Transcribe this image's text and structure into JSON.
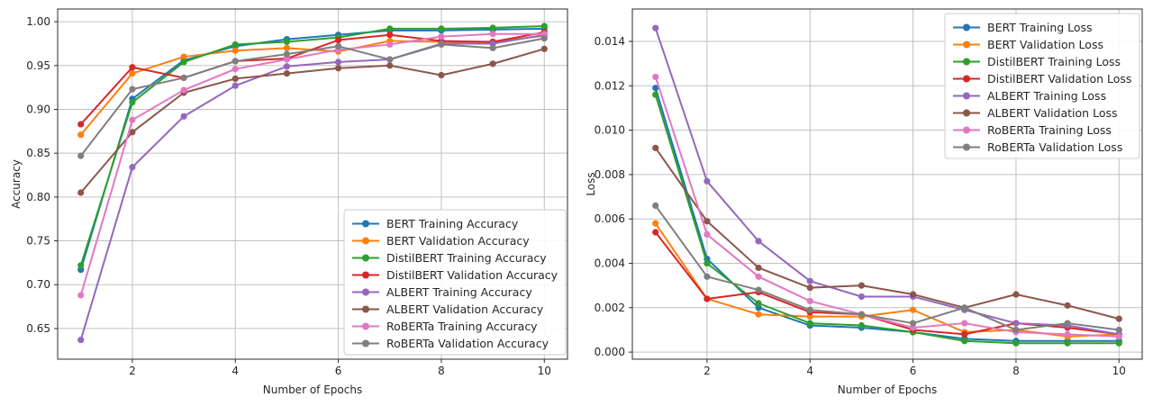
{
  "figure": {
    "background": "#ffffff",
    "grid_color": "#c0c0c0",
    "spine_color": "#2b2b2b",
    "legend_border_color": "#cccccc",
    "legend_bg": "#ffffff"
  },
  "chart_data": [
    {
      "type": "line",
      "title": "",
      "xlabel": "Number of Epochs",
      "ylabel": "Accuracy",
      "grid": true,
      "legend_position": "lower right",
      "xlim": [
        0.55,
        10.45
      ],
      "ylim": [
        0.615,
        1.0145
      ],
      "xticks": [
        "2",
        "4",
        "6",
        "8",
        "10"
      ],
      "yticks": [
        "0.65",
        "0.70",
        "0.75",
        "0.80",
        "0.85",
        "0.90",
        "0.95",
        "1.00"
      ],
      "x": [
        1,
        2,
        3,
        4,
        5,
        6,
        7,
        8,
        9,
        10
      ],
      "series": [
        {
          "name": "BERT Training Accuracy",
          "color": "#1f77b4",
          "values": [
            0.717,
            0.912,
            0.956,
            0.972,
            0.98,
            0.985,
            0.99,
            0.99,
            0.991,
            0.992
          ]
        },
        {
          "name": "BERT Validation Accuracy",
          "color": "#ff7f0e",
          "values": [
            0.871,
            0.941,
            0.96,
            0.967,
            0.97,
            0.966,
            0.978,
            0.977,
            0.977,
            0.984
          ]
        },
        {
          "name": "DistilBERT Training Accuracy",
          "color": "#2ca02c",
          "values": [
            0.722,
            0.908,
            0.954,
            0.974,
            0.977,
            0.982,
            0.992,
            0.992,
            0.993,
            0.995
          ]
        },
        {
          "name": "DistilBERT Validation Accuracy",
          "color": "#d62728",
          "values": [
            0.883,
            0.948,
            0.936,
            0.955,
            0.958,
            0.979,
            0.985,
            0.978,
            0.977,
            0.988
          ]
        },
        {
          "name": "ALBERT Training Accuracy",
          "color": "#9467bd",
          "values": [
            0.637,
            0.834,
            0.892,
            0.927,
            0.949,
            0.954,
            0.957,
            0.975,
            0.975,
            0.985
          ]
        },
        {
          "name": "ALBERT Validation Accuracy",
          "color": "#8c564b",
          "values": [
            0.805,
            0.874,
            0.919,
            0.935,
            0.941,
            0.947,
            0.95,
            0.939,
            0.952,
            0.969
          ]
        },
        {
          "name": "RoBERTa Training Accuracy",
          "color": "#e377c2",
          "values": [
            0.688,
            0.888,
            0.922,
            0.946,
            0.957,
            0.968,
            0.974,
            0.983,
            0.986,
            0.986
          ]
        },
        {
          "name": "RoBERTa Validation Accuracy",
          "color": "#7f7f7f",
          "values": [
            0.847,
            0.923,
            0.936,
            0.955,
            0.963,
            0.972,
            0.957,
            0.974,
            0.97,
            0.981
          ]
        }
      ]
    },
    {
      "type": "line",
      "title": "",
      "xlabel": "Number of Epochs",
      "ylabel": "Loss",
      "grid": true,
      "legend_position": "upper right",
      "xlim": [
        0.55,
        10.45
      ],
      "ylim": [
        -0.00032,
        0.01546
      ],
      "xticks": [
        "2",
        "4",
        "6",
        "8",
        "10"
      ],
      "yticks": [
        "0.000",
        "0.002",
        "0.004",
        "0.006",
        "0.008",
        "0.010",
        "0.012",
        "0.014"
      ],
      "x": [
        1,
        2,
        3,
        4,
        5,
        6,
        7,
        8,
        9,
        10
      ],
      "series": [
        {
          "name": "BERT Training Loss",
          "color": "#1f77b4",
          "values": [
            0.0119,
            0.0042,
            0.002,
            0.0012,
            0.0011,
            0.0009,
            0.0006,
            0.0005,
            0.0005,
            0.0005
          ]
        },
        {
          "name": "BERT Validation Loss",
          "color": "#ff7f0e",
          "values": [
            0.0058,
            0.0024,
            0.0017,
            0.0016,
            0.0016,
            0.0019,
            0.0009,
            0.001,
            0.0007,
            0.0008
          ]
        },
        {
          "name": "DistilBERT Training Loss",
          "color": "#2ca02c",
          "values": [
            0.0116,
            0.004,
            0.0022,
            0.0013,
            0.0012,
            0.0009,
            0.0005,
            0.0004,
            0.0004,
            0.0004
          ]
        },
        {
          "name": "DistilBERT Validation Loss",
          "color": "#d62728",
          "values": [
            0.0054,
            0.0024,
            0.0027,
            0.0018,
            0.0017,
            0.001,
            0.0008,
            0.0013,
            0.0011,
            0.0008
          ]
        },
        {
          "name": "ALBERT Training Loss",
          "color": "#9467bd",
          "values": [
            0.0146,
            0.0077,
            0.005,
            0.0032,
            0.0025,
            0.0025,
            0.0019,
            0.0013,
            0.0012,
            0.0008
          ]
        },
        {
          "name": "ALBERT Validation Loss",
          "color": "#8c564b",
          "values": [
            0.0092,
            0.0059,
            0.0038,
            0.0029,
            0.003,
            0.0026,
            0.002,
            0.0026,
            0.0021,
            0.0015
          ]
        },
        {
          "name": "RoBERTa Training Loss",
          "color": "#e377c2",
          "values": [
            0.0124,
            0.0053,
            0.0034,
            0.0023,
            0.0017,
            0.0011,
            0.0013,
            0.0009,
            0.0008,
            0.0007
          ]
        },
        {
          "name": "RoBERTa Validation Loss",
          "color": "#7f7f7f",
          "values": [
            0.0066,
            0.0034,
            0.0028,
            0.0019,
            0.0017,
            0.0013,
            0.002,
            0.001,
            0.0013,
            0.001
          ]
        }
      ]
    }
  ]
}
